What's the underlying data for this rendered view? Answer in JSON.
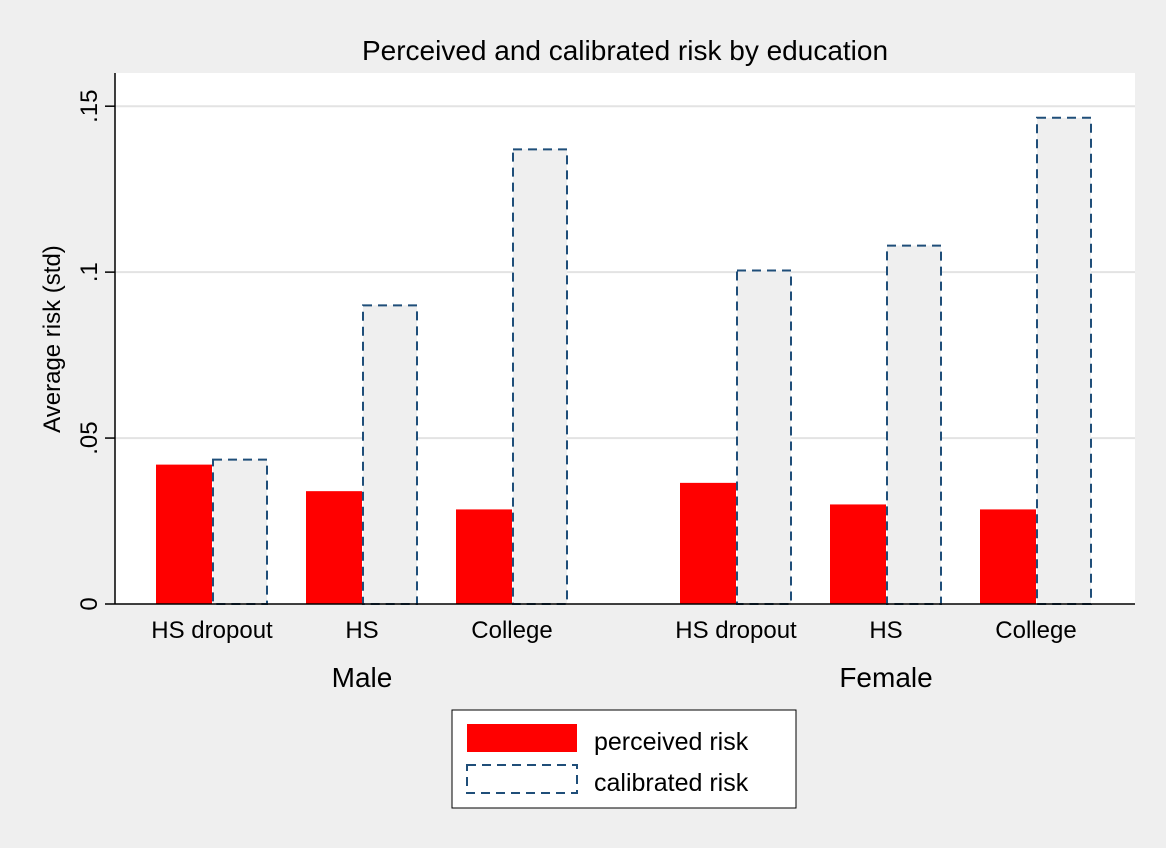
{
  "chart_data": {
    "type": "bar",
    "title": "Perceived and calibrated risk by education",
    "ylabel": "Average risk (std)",
    "xlabel": "",
    "ylim": [
      0,
      0.16
    ],
    "yticks": [
      {
        "value": 0,
        "label": "0"
      },
      {
        "value": 0.05,
        "label": ".05"
      },
      {
        "value": 0.1,
        "label": ".1"
      },
      {
        "value": 0.15,
        "label": ".15"
      }
    ],
    "grid": true,
    "legend_position": "bottom",
    "groups": [
      {
        "name": "Male",
        "categories": [
          "HS dropout",
          "HS",
          "College"
        ]
      },
      {
        "name": "Female",
        "categories": [
          "HS dropout",
          "HS",
          "College"
        ]
      }
    ],
    "series": [
      {
        "name": "perceived risk",
        "style": "solid",
        "color": "#ff0000",
        "values": [
          [
            0.042,
            0.034,
            0.0285
          ],
          [
            0.0365,
            0.03,
            0.0285
          ]
        ]
      },
      {
        "name": "calibrated risk",
        "style": "dashed",
        "color": "#1f4e79",
        "values": [
          [
            0.0435,
            0.09,
            0.137
          ],
          [
            0.1005,
            0.108,
            0.1465
          ]
        ]
      }
    ]
  }
}
